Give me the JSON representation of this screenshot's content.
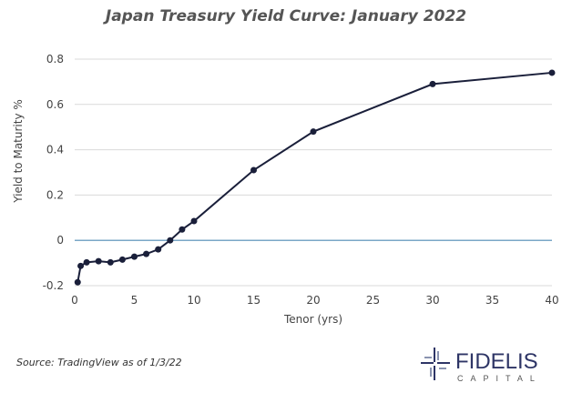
{
  "chart_data": {
    "type": "line",
    "title": "Japan Treasury Yield Curve: January 2022",
    "xlabel": "Tenor (yrs)",
    "ylabel": "Yield to Maturity %",
    "xlim": [
      0,
      40
    ],
    "ylim": [
      -0.2,
      0.8
    ],
    "xticks": [
      "0",
      "5",
      "10",
      "15",
      "20",
      "25",
      "30",
      "35",
      "40"
    ],
    "yticks": [
      "-0.2",
      "0",
      "0.2",
      "0.4",
      "0.6",
      "0.8"
    ],
    "grid": "horizontal",
    "zero_line_color": "#7aa7c7",
    "line_color": "#1a1f3a",
    "series": [
      {
        "x": [
          0.25,
          0.5,
          1,
          2,
          3,
          4,
          5,
          6,
          7,
          8,
          9,
          10,
          15,
          20,
          30,
          40
        ],
        "y": [
          -0.185,
          -0.113,
          -0.097,
          -0.092,
          -0.097,
          -0.085,
          -0.072,
          -0.06,
          -0.04,
          0.0,
          0.048,
          0.085,
          0.31,
          0.48,
          0.69,
          0.74
        ]
      }
    ]
  },
  "source": "Source: TradingView as of 1/3/22",
  "logo": {
    "name": "FIDELIS",
    "sub": "CAPITAL",
    "color": "#2e3566"
  }
}
